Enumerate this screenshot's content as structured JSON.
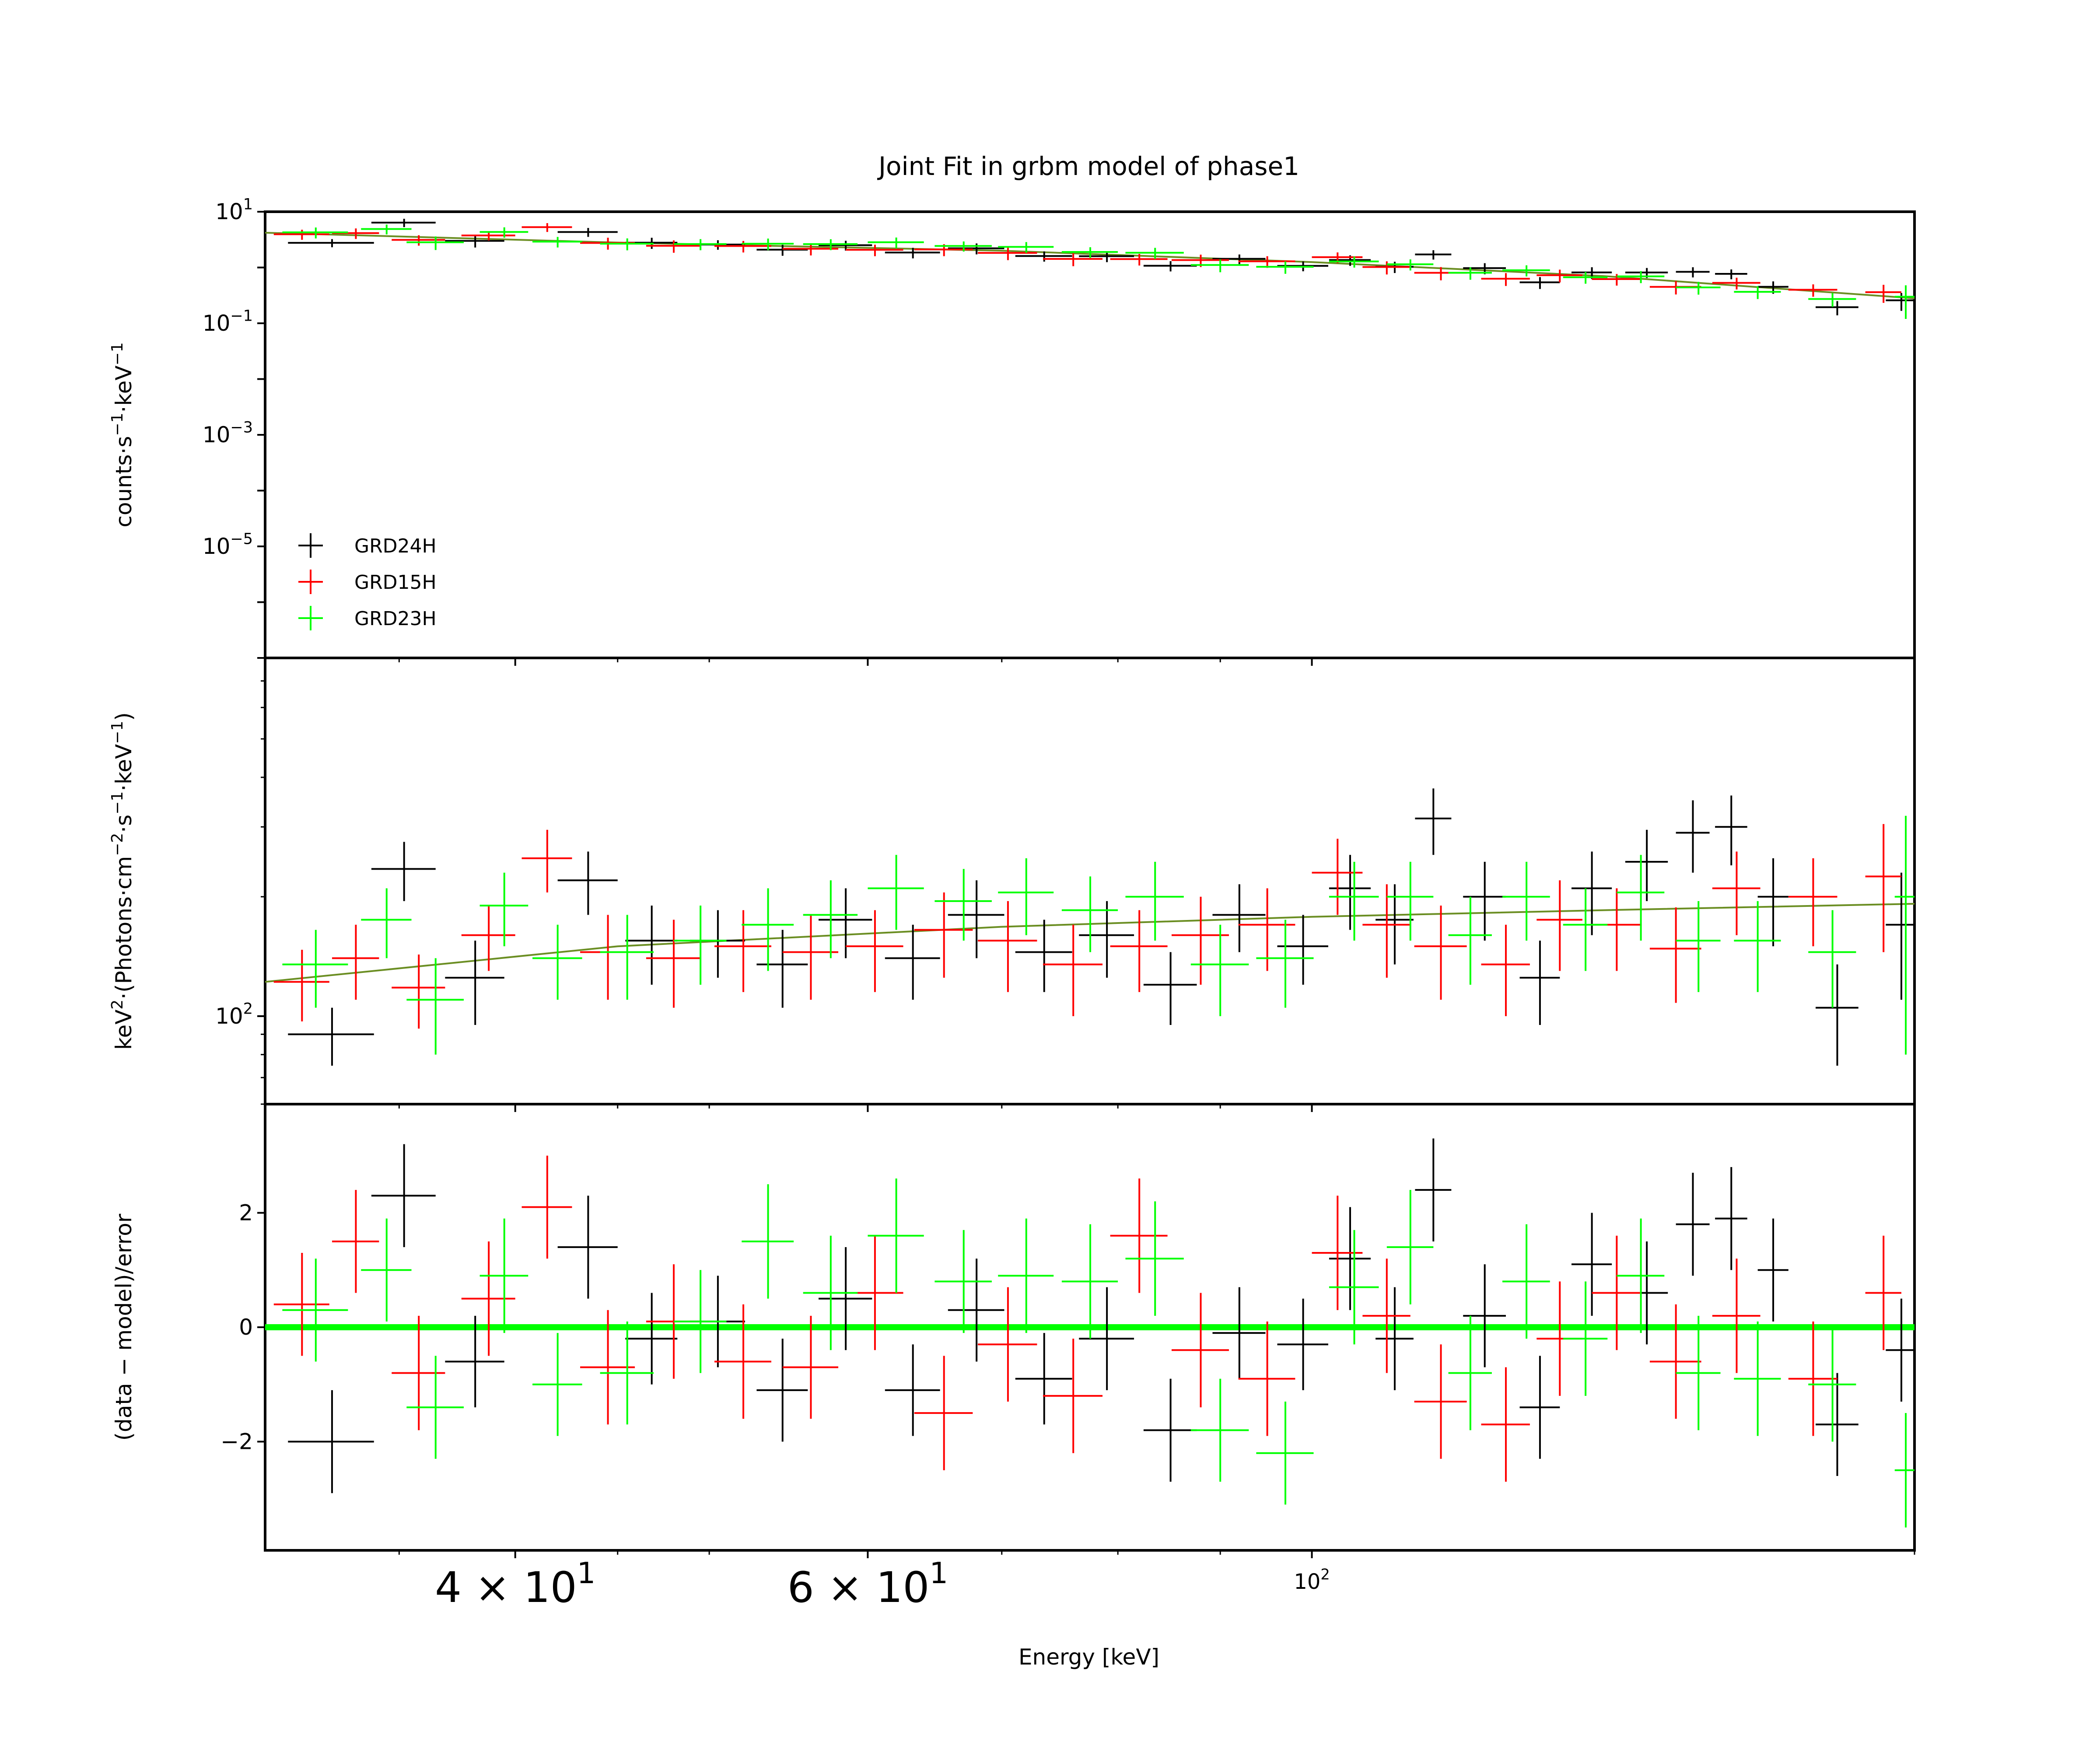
{
  "chart_data": {
    "type": "scatter",
    "title": "Joint Fit  in grbm model of phase1",
    "xlabel": "Energy [keV]",
    "xscale": "log",
    "xlim": [
      30,
      200
    ],
    "x_ticks": [
      {
        "value": 40,
        "base": "4 × 10",
        "exp": "1",
        "size": "large"
      },
      {
        "value": 60,
        "base": "6 × 10",
        "exp": "1",
        "size": "large"
      },
      {
        "value": 100,
        "base": "10",
        "exp": "2",
        "size": "small"
      }
    ],
    "colors": {
      "GRD24H": "#000000",
      "GRD15H": "#ff0000",
      "GRD23H": "#00ff00"
    },
    "legend": {
      "position": "lower-left",
      "entries": [
        "GRD24H",
        "GRD15H",
        "GRD23H"
      ]
    },
    "panels": [
      {
        "id": "counts",
        "ylabel_parts": [
          "counts·s",
          "−1",
          "·keV",
          "−1"
        ],
        "yscale": "log",
        "ylim": [
          1e-07,
          10
        ],
        "y_ticks": [
          {
            "value": 10,
            "base": "10",
            "exp": "1"
          },
          {
            "value": 0.1,
            "base": "10",
            "exp": "−1"
          },
          {
            "value": 0.001,
            "base": "10",
            "exp": "−3"
          },
          {
            "value": 1e-05,
            "base": "10",
            "exp": "−5"
          }
        ]
      },
      {
        "id": "spectrum",
        "ylabel_parts": [
          "keV",
          "2",
          "·(Photons·cm",
          "−2",
          "·s",
          "−1",
          "·keV",
          "−1",
          ")"
        ],
        "yscale": "log",
        "ylim": [
          60,
          800
        ],
        "y_ticks": [
          {
            "value": 100,
            "base": "10",
            "exp": "2"
          }
        ]
      },
      {
        "id": "residuals",
        "ylabel": "(data − model)/error",
        "yscale": "linear",
        "ylim": [
          -3.9,
          3.9
        ],
        "y_ticks": [
          {
            "value": 2,
            "label": "2"
          },
          {
            "value": 0,
            "label": "0"
          },
          {
            "value": -2,
            "label": "−2"
          }
        ]
      }
    ],
    "series": [
      {
        "name": "GRD24H",
        "energy": [
          32.4,
          35.2,
          38.2,
          43.5,
          46.8,
          50.5,
          54.4,
          58.5,
          63.2,
          68.0,
          73.5,
          79.0,
          85.0,
          92.0,
          99.0,
          104.5,
          110.0,
          115.0,
          122.0,
          130.0,
          138.0,
          147.0,
          155.0,
          162.0,
          170.0,
          183.0,
          197.0
        ],
        "e_halfwidth": [
          1.6,
          1.3,
          1.3,
          1.5,
          1.4,
          1.6,
          1.6,
          1.8,
          2.0,
          2.2,
          2.4,
          2.5,
          2.6,
          2.8,
          2.9,
          2.5,
          2.4,
          2.4,
          3.0,
          3.0,
          3.2,
          3.6,
          3.0,
          3.0,
          3.0,
          4.5,
          3.5
        ],
        "nufnu": [
          90,
          235,
          125,
          220,
          155,
          155,
          135,
          175,
          140,
          180,
          145,
          160,
          120,
          180,
          150,
          210,
          175,
          315,
          200,
          125,
          210,
          245,
          290,
          300,
          200,
          105,
          170
        ],
        "nufnu_err": [
          15,
          40,
          30,
          40,
          35,
          30,
          30,
          35,
          30,
          40,
          30,
          35,
          25,
          35,
          30,
          45,
          40,
          60,
          45,
          30,
          50,
          50,
          60,
          60,
          50,
          30,
          60
        ],
        "residual": [
          -2.0,
          2.3,
          -0.6,
          1.4,
          -0.2,
          0.1,
          -1.1,
          0.5,
          -1.1,
          0.3,
          -0.9,
          -0.2,
          -1.8,
          -0.1,
          -0.3,
          1.2,
          -0.2,
          2.4,
          0.2,
          -1.4,
          1.1,
          0.6,
          1.8,
          1.9,
          1.0,
          -1.7,
          -0.4
        ],
        "res_err": [
          0.9,
          0.9,
          0.8,
          0.9,
          0.8,
          0.8,
          0.9,
          0.9,
          0.8,
          0.9,
          0.8,
          0.9,
          0.9,
          0.8,
          0.8,
          0.9,
          0.9,
          0.9,
          0.9,
          0.9,
          0.9,
          0.9,
          0.9,
          0.9,
          0.9,
          0.9,
          0.9
        ]
      },
      {
        "name": "GRD15H",
        "energy": [
          31.3,
          33.3,
          35.8,
          38.8,
          41.5,
          44.5,
          48.0,
          52.0,
          56.2,
          60.5,
          65.5,
          70.5,
          76.0,
          82.0,
          88.0,
          95.0,
          103.0,
          109.0,
          116.0,
          125.0,
          133.0,
          142.0,
          152.0,
          163.0,
          178.0,
          193.0
        ],
        "e_halfwidth": [
          1.0,
          0.9,
          1.1,
          1.2,
          1.2,
          1.4,
          1.5,
          1.7,
          1.8,
          2.0,
          2.2,
          2.4,
          2.6,
          2.7,
          2.9,
          3.1,
          3.0,
          3.0,
          3.5,
          3.5,
          3.5,
          4.0,
          4.5,
          4.5,
          5.0,
          4.0
        ],
        "nufnu": [
          122,
          140,
          118,
          160,
          250,
          145,
          140,
          150,
          145,
          150,
          165,
          155,
          135,
          150,
          160,
          170,
          230,
          170,
          150,
          135,
          175,
          170,
          148,
          210,
          200,
          225
        ],
        "nufnu_err": [
          25,
          30,
          25,
          30,
          45,
          35,
          35,
          35,
          35,
          35,
          40,
          40,
          35,
          35,
          40,
          40,
          50,
          45,
          40,
          35,
          45,
          40,
          40,
          50,
          50,
          80
        ],
        "residual": [
          0.4,
          1.5,
          -0.8,
          0.5,
          2.1,
          -0.7,
          0.1,
          -0.6,
          -0.7,
          0.6,
          -1.5,
          -0.3,
          -1.2,
          1.6,
          -0.4,
          -0.9,
          1.3,
          0.2,
          -1.3,
          -1.7,
          -0.2,
          0.6,
          -0.6,
          0.2,
          -0.9,
          0.6
        ],
        "res_err": [
          0.9,
          0.9,
          1.0,
          1.0,
          0.9,
          1.0,
          1.0,
          1.0,
          0.9,
          1.0,
          1.0,
          1.0,
          1.0,
          1.0,
          1.0,
          1.0,
          1.0,
          1.0,
          1.0,
          1.0,
          1.0,
          1.0,
          1.0,
          1.0,
          1.0,
          1.0
        ]
      },
      {
        "name": "GRD23H",
        "energy": [
          31.8,
          34.5,
          36.5,
          39.5,
          42.0,
          45.5,
          49.5,
          53.5,
          57.5,
          62.0,
          67.0,
          72.0,
          77.5,
          83.5,
          90.0,
          97.0,
          105.0,
          112.0,
          120.0,
          128.0,
          137.0,
          146.0,
          156.0,
          167.0,
          182.0,
          198.0
        ],
        "e_halfwidth": [
          1.2,
          1.0,
          1.2,
          1.1,
          1.2,
          1.4,
          1.5,
          1.6,
          1.8,
          2.0,
          2.2,
          2.3,
          2.5,
          2.8,
          3.0,
          3.2,
          3.0,
          3.0,
          3.0,
          3.5,
          3.5,
          4.0,
          4.0,
          4.5,
          5.0,
          2.5
        ],
        "nufnu": [
          135,
          175,
          110,
          190,
          140,
          145,
          155,
          170,
          180,
          210,
          195,
          205,
          185,
          200,
          135,
          140,
          200,
          200,
          160,
          200,
          170,
          205,
          155,
          155,
          145,
          200
        ],
        "nufnu_err": [
          30,
          35,
          30,
          40,
          30,
          35,
          35,
          40,
          40,
          45,
          40,
          45,
          40,
          45,
          35,
          35,
          45,
          45,
          40,
          45,
          40,
          50,
          40,
          40,
          40,
          120
        ],
        "residual": [
          0.3,
          1.0,
          -1.4,
          0.9,
          -1.0,
          -0.8,
          0.1,
          1.5,
          0.6,
          1.6,
          0.8,
          0.9,
          0.8,
          1.2,
          -1.8,
          -2.2,
          0.7,
          1.4,
          -0.8,
          0.8,
          -0.2,
          0.9,
          -0.8,
          -0.9,
          -1.0,
          -2.5
        ],
        "res_err": [
          0.9,
          0.9,
          0.9,
          1.0,
          0.9,
          0.9,
          0.9,
          1.0,
          1.0,
          1.0,
          0.9,
          1.0,
          1.0,
          1.0,
          0.9,
          0.9,
          1.0,
          1.0,
          1.0,
          1.0,
          1.0,
          1.0,
          1.0,
          1.0,
          1.0,
          1.0
        ]
      }
    ],
    "model": {
      "nufnu_energy": [
        30,
        45,
        70,
        100,
        140,
        200
      ],
      "nufnu_value": [
        122,
        150,
        168,
        178,
        185,
        192
      ],
      "counts_energy": [
        30,
        45,
        70,
        100,
        140,
        200
      ],
      "counts_value": [
        4.2,
        2.8,
        2.0,
        1.25,
        0.7,
        0.28
      ]
    }
  }
}
